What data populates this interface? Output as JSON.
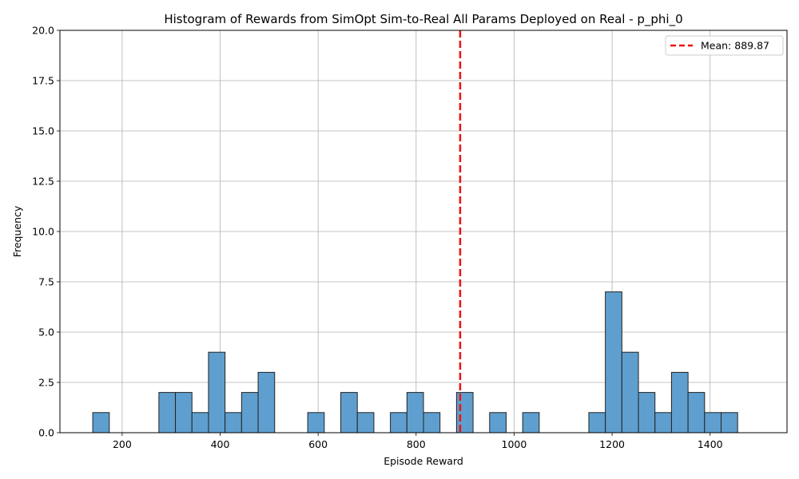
{
  "chart_data": {
    "type": "bar",
    "title": "Histogram of Rewards from SimOpt Sim-to-Real All Params Deployed on Real - p_phi_0",
    "xlabel": "Episode Reward",
    "ylabel": "Frequency",
    "xlim": [
      73,
      1557
    ],
    "ylim": [
      0,
      20
    ],
    "xticks": [
      "200",
      "400",
      "600",
      "800",
      "1000",
      "1200",
      "1400"
    ],
    "xtick_values": [
      200,
      400,
      600,
      800,
      1000,
      1200,
      1400
    ],
    "yticks": [
      "0.0",
      "2.5",
      "5.0",
      "7.5",
      "10.0",
      "12.5",
      "15.0",
      "17.5",
      "20.0"
    ],
    "ytick_values": [
      0,
      2.5,
      5,
      7.5,
      10,
      12.5,
      15,
      17.5,
      20
    ],
    "grid": true,
    "bin_start": 140,
    "bin_width": 33.75,
    "values": [
      1,
      0,
      0,
      0,
      2,
      2,
      1,
      4,
      1,
      2,
      3,
      0,
      0,
      1,
      0,
      2,
      1,
      0,
      1,
      2,
      1,
      0,
      2,
      0,
      1,
      0,
      1,
      0,
      0,
      0,
      1,
      7,
      4,
      2,
      1,
      3,
      2,
      1,
      1,
      0
    ],
    "bar_color": "#5f9fcf",
    "bar_edge_color": "#222222",
    "mean": 889.87,
    "mean_color": "#ee1111",
    "legend": {
      "position": "top-right",
      "entries": [
        {
          "label": "Mean: 889.87",
          "style": "dashed",
          "color": "#ee1111"
        }
      ]
    }
  }
}
